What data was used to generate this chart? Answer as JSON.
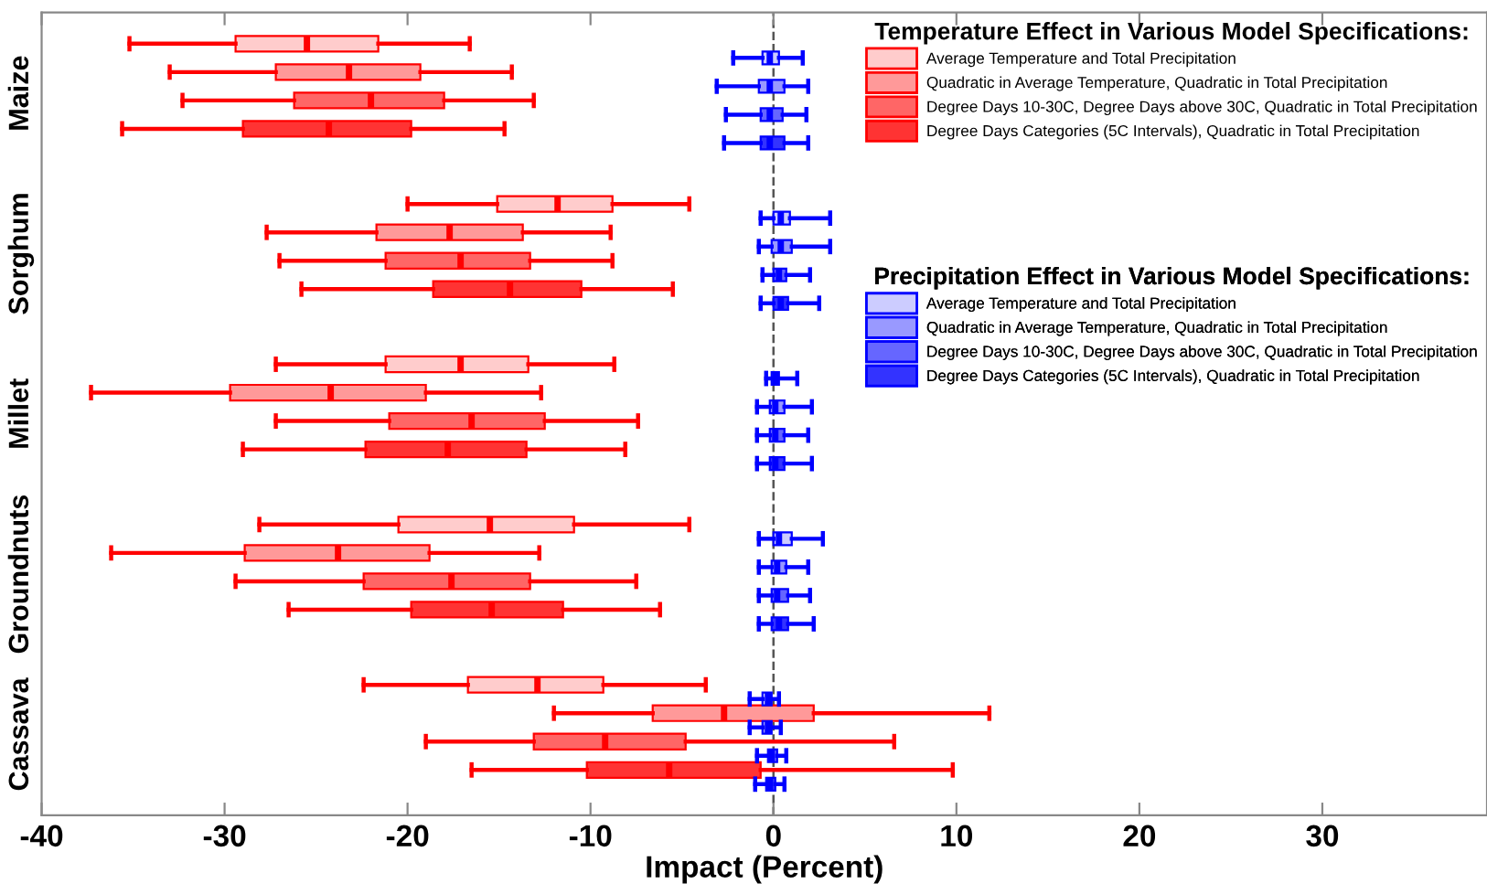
{
  "chart_data": {
    "type": "box",
    "orientation": "horizontal",
    "categories": [
      "Maize",
      "Sorghum",
      "Millet",
      "Groundnuts",
      "Cassava"
    ],
    "xlabel": "Impact (Percent)",
    "xlim": [
      -40,
      39
    ],
    "xticks": [
      -40,
      -30,
      -20,
      -10,
      0,
      10,
      20,
      30
    ],
    "legend": "top right",
    "legend_title": "Temperature Effect in Various Model Specifications:",
    "annotations": [
      "Precipitation Effect in Various Model Specifications:"
    ],
    "grid": false,
    "ref_lines": [
      {
        "axis": "x",
        "value": 0,
        "color": "#555555",
        "line_style": "dashed"
      }
    ],
    "series": [
      {
        "name": "Average Temperature and Total Precipitation",
        "color": "#ffcccc",
        "boxes": [
          {
            "low": -35.2,
            "q1": -29.4,
            "median": -25.5,
            "q3": -21.6,
            "high": -16.6
          },
          {
            "low": -20.0,
            "q1": -15.1,
            "median": -11.8,
            "q3": -8.8,
            "high": -4.6
          },
          {
            "low": -27.2,
            "q1": -21.2,
            "median": -17.1,
            "q3": -13.4,
            "high": -8.7
          },
          {
            "low": -28.1,
            "q1": -20.5,
            "median": -15.5,
            "q3": -10.9,
            "high": -4.6
          },
          {
            "low": -22.4,
            "q1": -16.7,
            "median": -12.9,
            "q3": -9.3,
            "high": -3.7
          }
        ]
      },
      {
        "name": "Quadratic in Average Temperature, Quadratic in Total Precipitation",
        "color": "#ff9999",
        "boxes": [
          {
            "low": -33.0,
            "q1": -27.2,
            "median": -23.2,
            "q3": -19.3,
            "high": -14.3
          },
          {
            "low": -27.7,
            "q1": -21.7,
            "median": -17.7,
            "q3": -13.7,
            "high": -8.9
          },
          {
            "low": -37.3,
            "q1": -29.7,
            "median": -24.2,
            "q3": -19.0,
            "high": -12.7
          },
          {
            "low": -36.2,
            "q1": -28.9,
            "median": -23.8,
            "q3": -18.8,
            "high": -12.8
          },
          {
            "low": -12.0,
            "q1": -6.6,
            "median": -2.7,
            "q3": 2.2,
            "high": 11.8
          }
        ]
      },
      {
        "name": "Degree Days 10-30C, Degree Days above 30C, Quadratic in Total Precipitation",
        "color": "#ff6666",
        "boxes": [
          {
            "low": -32.3,
            "q1": -26.2,
            "median": -22.0,
            "q3": -18.0,
            "high": -13.1
          },
          {
            "low": -27.0,
            "q1": -21.2,
            "median": -17.1,
            "q3": -13.3,
            "high": -8.8
          },
          {
            "low": -27.2,
            "q1": -21.0,
            "median": -16.5,
            "q3": -12.5,
            "high": -7.4
          },
          {
            "low": -29.4,
            "q1": -22.4,
            "median": -17.6,
            "q3": -13.3,
            "high": -7.5
          },
          {
            "low": -19.0,
            "q1": -13.1,
            "median": -9.2,
            "q3": -4.8,
            "high": 6.6
          }
        ]
      },
      {
        "name": "Degree Days Categories (5C Intervals), Quadratic in Total Precipitation",
        "color": "#ff3333",
        "boxes": [
          {
            "low": -35.6,
            "q1": -29.0,
            "median": -24.3,
            "q3": -19.8,
            "high": -14.7
          },
          {
            "low": -25.8,
            "q1": -18.6,
            "median": -14.4,
            "q3": -10.5,
            "high": -5.5
          },
          {
            "low": -29.0,
            "q1": -22.3,
            "median": -17.8,
            "q3": -13.5,
            "high": -8.1
          },
          {
            "low": -26.5,
            "q1": -19.8,
            "median": -15.4,
            "q3": -11.5,
            "high": -6.2
          },
          {
            "low": -16.5,
            "q1": -10.2,
            "median": -5.7,
            "q3": -0.7,
            "high": 9.8
          }
        ]
      },
      {
        "name": "Average Temperature and Total Precipitation",
        "color": "#ccccff",
        "boxes": [
          {
            "low": -2.2,
            "q1": -0.6,
            "median": -0.2,
            "q3": 0.3,
            "high": 1.6
          },
          {
            "low": -0.7,
            "q1": 0.0,
            "median": 0.4,
            "q3": 0.9,
            "high": 3.1
          },
          {
            "low": -0.4,
            "q1": -0.1,
            "median": 0.1,
            "q3": 0.3,
            "high": 1.3
          },
          {
            "low": -0.8,
            "q1": 0.0,
            "median": 0.3,
            "q3": 1.0,
            "high": 2.7
          },
          {
            "low": -1.3,
            "q1": -0.6,
            "median": -0.3,
            "q3": -0.1,
            "high": 0.3
          }
        ]
      },
      {
        "name": "Quadratic in Average Temperature, Quadratic in Total Precipitation",
        "color": "#9999ff",
        "boxes": [
          {
            "low": -3.1,
            "q1": -0.8,
            "median": -0.2,
            "q3": 0.6,
            "high": 1.9
          },
          {
            "low": -0.8,
            "q1": -0.1,
            "median": 0.4,
            "q3": 1.0,
            "high": 3.1
          },
          {
            "low": -0.9,
            "q1": -0.2,
            "median": 0.1,
            "q3": 0.6,
            "high": 2.1
          },
          {
            "low": -0.8,
            "q1": -0.1,
            "median": 0.2,
            "q3": 0.7,
            "high": 1.9
          },
          {
            "low": -1.3,
            "q1": -0.6,
            "median": -0.3,
            "q3": -0.1,
            "high": 0.4
          }
        ]
      },
      {
        "name": "Degree Days 10-30C, Degree Days above 30C, Quadratic in Total Precipitation",
        "color": "#6666ff",
        "boxes": [
          {
            "low": -2.6,
            "q1": -0.7,
            "median": -0.2,
            "q3": 0.5,
            "high": 1.8
          },
          {
            "low": -0.6,
            "q1": 0.0,
            "median": 0.3,
            "q3": 0.7,
            "high": 2.0
          },
          {
            "low": -0.9,
            "q1": -0.2,
            "median": 0.1,
            "q3": 0.6,
            "high": 1.9
          },
          {
            "low": -0.8,
            "q1": -0.1,
            "median": 0.2,
            "q3": 0.8,
            "high": 2.0
          },
          {
            "low": -0.9,
            "q1": -0.3,
            "median": -0.1,
            "q3": 0.2,
            "high": 0.7
          }
        ]
      },
      {
        "name": "Degree Days Categories (5C Intervals), Quadratic in Total Precipitation",
        "color": "#3333ff",
        "boxes": [
          {
            "low": -2.7,
            "q1": -0.7,
            "median": -0.2,
            "q3": 0.6,
            "high": 1.9
          },
          {
            "low": -0.7,
            "q1": 0.0,
            "median": 0.4,
            "q3": 0.8,
            "high": 2.5
          },
          {
            "low": -0.9,
            "q1": -0.2,
            "median": 0.1,
            "q3": 0.6,
            "high": 2.1
          },
          {
            "low": -0.8,
            "q1": -0.1,
            "median": 0.3,
            "q3": 0.8,
            "high": 2.2
          },
          {
            "low": -1.0,
            "q1": -0.4,
            "median": -0.2,
            "q3": 0.1,
            "high": 0.6
          }
        ]
      }
    ]
  }
}
